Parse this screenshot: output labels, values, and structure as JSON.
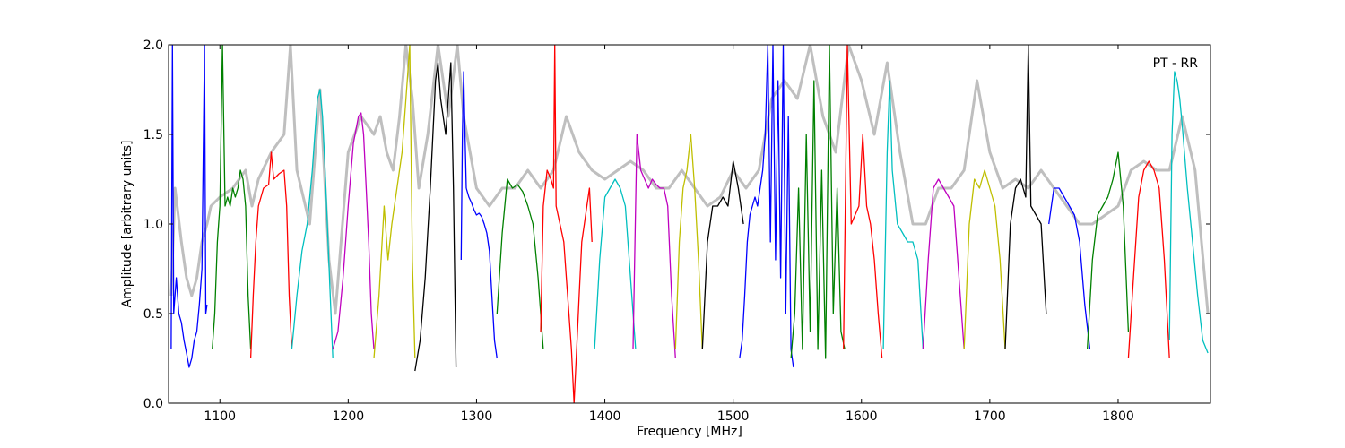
{
  "chart_data": {
    "type": "line",
    "title": "",
    "annotation": "PT - RR",
    "xlabel": "Frequency [MHz]",
    "ylabel": "Amplitude [arbitrary units]",
    "xlim": [
      1060,
      1872
    ],
    "ylim": [
      0.0,
      2.0
    ],
    "xticks": [
      1100,
      1200,
      1300,
      1400,
      1500,
      1600,
      1700,
      1800
    ],
    "yticks": [
      0.0,
      0.5,
      1.0,
      1.5,
      2.0
    ],
    "xtick_labels": [
      "1100",
      "1200",
      "1300",
      "1400",
      "1500",
      "1600",
      "1700",
      "1800"
    ],
    "ytick_labels": [
      "0.0",
      "0.5",
      "1.0",
      "1.5",
      "2.0"
    ],
    "grid": false,
    "background_series": {
      "color": "#bfbfbf",
      "x": [
        1062,
        1065,
        1070,
        1074,
        1078,
        1082,
        1086,
        1090,
        1093,
        1100,
        1110,
        1120,
        1125,
        1130,
        1140,
        1150,
        1155,
        1160,
        1170,
        1178,
        1185,
        1190,
        1200,
        1210,
        1220,
        1225,
        1230,
        1235,
        1240,
        1245,
        1250,
        1255,
        1262,
        1270,
        1278,
        1285,
        1290,
        1300,
        1310,
        1320,
        1330,
        1340,
        1350,
        1360,
        1370,
        1380,
        1390,
        1400,
        1410,
        1420,
        1430,
        1440,
        1450,
        1460,
        1470,
        1480,
        1490,
        1500,
        1510,
        1520,
        1530,
        1540,
        1550,
        1560,
        1570,
        1580,
        1590,
        1600,
        1610,
        1620,
        1630,
        1640,
        1650,
        1660,
        1670,
        1680,
        1690,
        1700,
        1710,
        1720,
        1730,
        1740,
        1750,
        1760,
        1770,
        1780,
        1790,
        1800,
        1810,
        1820,
        1830,
        1840,
        1850,
        1860,
        1870
      ],
      "y": [
        0.6,
        1.2,
        0.9,
        0.7,
        0.6,
        0.7,
        0.9,
        1.0,
        1.1,
        1.15,
        1.2,
        1.3,
        1.1,
        1.25,
        1.4,
        1.5,
        2.0,
        1.3,
        1.0,
        1.75,
        0.8,
        0.5,
        1.4,
        1.6,
        1.5,
        1.6,
        1.4,
        1.3,
        1.6,
        2.0,
        1.7,
        1.2,
        1.5,
        2.0,
        1.6,
        2.0,
        1.6,
        1.2,
        1.1,
        1.2,
        1.2,
        1.3,
        1.2,
        1.3,
        1.6,
        1.4,
        1.3,
        1.25,
        1.3,
        1.35,
        1.3,
        1.2,
        1.2,
        1.3,
        1.2,
        1.1,
        1.15,
        1.3,
        1.2,
        1.3,
        1.7,
        1.8,
        1.7,
        2.0,
        1.6,
        1.4,
        2.0,
        1.8,
        1.5,
        1.9,
        1.4,
        1.0,
        1.0,
        1.2,
        1.2,
        1.3,
        1.8,
        1.4,
        1.2,
        1.25,
        1.2,
        1.3,
        1.2,
        1.1,
        1.0,
        1.0,
        1.05,
        1.1,
        1.3,
        1.35,
        1.3,
        1.3,
        1.6,
        1.3,
        0.5
      ]
    },
    "series": [
      {
        "color": "#0000ff",
        "segments": [
          {
            "x": [
              1062,
              1063,
              1064,
              1066,
              1068,
              1070,
              1072,
              1074,
              1076,
              1078,
              1080,
              1082,
              1084,
              1086,
              1088,
              1089,
              1090
            ],
            "y": [
              0.3,
              2.0,
              0.5,
              0.7,
              0.5,
              0.45,
              0.35,
              0.28,
              0.2,
              0.25,
              0.35,
              0.4,
              0.55,
              0.75,
              2.0,
              0.5,
              0.55
            ]
          },
          {
            "x": [
              1292,
              1294,
              1296,
              1298,
              1300,
              1302,
              1304,
              1306,
              1308,
              1310,
              1312,
              1314,
              1316
            ],
            "y": [
              1.2,
              1.15,
              1.12,
              1.08,
              1.05,
              1.06,
              1.04,
              1.0,
              0.95,
              0.85,
              0.6,
              0.35,
              0.25
            ]
          },
          {
            "x": [
              1288,
              1289,
              1290,
              1291,
              1292
            ],
            "y": [
              0.8,
              1.5,
              1.85,
              1.5,
              1.2
            ]
          },
          {
            "x": [
              1505,
              1507,
              1509,
              1511,
              1513,
              1515,
              1517,
              1519,
              1521,
              1523,
              1525,
              1527,
              1529,
              1531,
              1533,
              1535,
              1537,
              1539,
              1541,
              1543,
              1545,
              1547
            ],
            "y": [
              0.25,
              0.35,
              0.6,
              0.9,
              1.05,
              1.1,
              1.15,
              1.1,
              1.2,
              1.3,
              1.5,
              2.0,
              0.9,
              2.0,
              0.8,
              1.8,
              0.7,
              2.0,
              0.5,
              1.6,
              0.3,
              0.2
            ]
          },
          {
            "x": [
              1746,
              1750,
              1754,
              1758,
              1762,
              1766,
              1770,
              1774,
              1778
            ],
            "y": [
              1.0,
              1.2,
              1.2,
              1.15,
              1.1,
              1.05,
              0.9,
              0.55,
              0.3
            ]
          }
        ]
      },
      {
        "color": "#008000",
        "segments": [
          {
            "x": [
              1094,
              1096,
              1098,
              1100,
              1102,
              1104,
              1106,
              1108,
              1110,
              1112,
              1114,
              1116,
              1118,
              1120,
              1122,
              1124
            ],
            "y": [
              0.3,
              0.5,
              0.9,
              1.1,
              2.0,
              1.1,
              1.15,
              1.1,
              1.2,
              1.15,
              1.2,
              1.3,
              1.25,
              1.1,
              0.6,
              0.3
            ]
          },
          {
            "x": [
              1316,
              1320,
              1324,
              1328,
              1332,
              1336,
              1340,
              1344,
              1348,
              1352
            ],
            "y": [
              0.5,
              0.95,
              1.25,
              1.2,
              1.22,
              1.18,
              1.1,
              1.0,
              0.7,
              0.3
            ]
          },
          {
            "x": [
              1545,
              1548,
              1551,
              1554,
              1557,
              1560,
              1563,
              1566,
              1569,
              1572,
              1575,
              1578,
              1581,
              1584,
              1587
            ],
            "y": [
              0.25,
              0.5,
              1.2,
              0.3,
              1.5,
              0.4,
              1.8,
              0.3,
              1.3,
              0.25,
              2.0,
              0.5,
              1.2,
              0.4,
              0.3
            ]
          },
          {
            "x": [
              1776,
              1780,
              1784,
              1788,
              1792,
              1796,
              1800,
              1804,
              1808
            ],
            "y": [
              0.3,
              0.8,
              1.05,
              1.1,
              1.15,
              1.25,
              1.4,
              1.1,
              0.4
            ]
          }
        ]
      },
      {
        "color": "#ff0000",
        "segments": [
          {
            "x": [
              1124,
              1126,
              1128,
              1130,
              1134,
              1138,
              1140,
              1142,
              1146,
              1150,
              1152,
              1154,
              1156
            ],
            "y": [
              0.25,
              0.6,
              0.9,
              1.1,
              1.2,
              1.22,
              1.4,
              1.25,
              1.28,
              1.3,
              1.1,
              0.6,
              0.3
            ]
          },
          {
            "x": [
              1350,
              1352,
              1355,
              1358,
              1360,
              1361,
              1362,
              1365,
              1368,
              1370,
              1372,
              1374,
              1376,
              1378,
              1380,
              1382,
              1384,
              1386,
              1388,
              1390
            ],
            "y": [
              0.4,
              1.1,
              1.3,
              1.25,
              1.2,
              2.0,
              1.1,
              1.0,
              0.9,
              0.7,
              0.5,
              0.3,
              0.0,
              0.3,
              0.6,
              0.9,
              1.0,
              1.1,
              1.2,
              0.9
            ]
          },
          {
            "x": [
              1586,
              1589,
              1592,
              1595,
              1598,
              1601,
              1604,
              1607,
              1610,
              1613,
              1616
            ],
            "y": [
              0.3,
              2.0,
              1.0,
              1.05,
              1.1,
              1.5,
              1.1,
              1.0,
              0.8,
              0.5,
              0.25
            ]
          },
          {
            "x": [
              1808,
              1812,
              1816,
              1820,
              1824,
              1828,
              1832,
              1836,
              1840
            ],
            "y": [
              0.25,
              0.7,
              1.15,
              1.3,
              1.35,
              1.3,
              1.2,
              0.8,
              0.25
            ]
          }
        ]
      },
      {
        "color": "#00bfbf",
        "segments": [
          {
            "x": [
              1156,
              1160,
              1164,
              1168,
              1172,
              1176,
              1178,
              1180,
              1182,
              1186,
              1188
            ],
            "y": [
              0.3,
              0.6,
              0.85,
              1.0,
              1.3,
              1.7,
              1.75,
              1.6,
              1.3,
              0.6,
              0.25
            ]
          },
          {
            "x": [
              1392,
              1396,
              1400,
              1404,
              1408,
              1412,
              1416,
              1420,
              1424
            ],
            "y": [
              0.3,
              0.8,
              1.15,
              1.2,
              1.25,
              1.2,
              1.1,
              0.7,
              0.3
            ]
          },
          {
            "x": [
              1617,
              1620,
              1622,
              1624,
              1628,
              1632,
              1636,
              1640,
              1644,
              1648
            ],
            "y": [
              0.3,
              1.4,
              1.8,
              1.3,
              1.0,
              0.95,
              0.9,
              0.9,
              0.8,
              0.3
            ]
          },
          {
            "x": [
              1840,
              1842,
              1844,
              1846,
              1848,
              1850,
              1854,
              1858,
              1862,
              1866,
              1870
            ],
            "y": [
              0.35,
              1.5,
              1.85,
              1.8,
              1.7,
              1.55,
              1.2,
              0.9,
              0.6,
              0.35,
              0.28
            ]
          }
        ]
      },
      {
        "color": "#bf00bf",
        "segments": [
          {
            "x": [
              1188,
              1192,
              1196,
              1200,
              1204,
              1208,
              1210,
              1212,
              1214,
              1216,
              1218,
              1220
            ],
            "y": [
              0.3,
              0.4,
              0.7,
              1.1,
              1.45,
              1.6,
              1.62,
              1.5,
              1.2,
              0.9,
              0.5,
              0.3
            ]
          },
          {
            "x": [
              1422,
              1425,
              1428,
              1431,
              1434,
              1437,
              1440,
              1443,
              1446,
              1449,
              1452,
              1455
            ],
            "y": [
              0.3,
              1.5,
              1.3,
              1.25,
              1.2,
              1.25,
              1.22,
              1.2,
              1.2,
              1.1,
              0.6,
              0.25
            ]
          },
          {
            "x": [
              1648,
              1652,
              1656,
              1660,
              1664,
              1668,
              1672,
              1676,
              1680
            ],
            "y": [
              0.3,
              0.8,
              1.2,
              1.25,
              1.2,
              1.15,
              1.1,
              0.7,
              0.3
            ]
          }
        ]
      },
      {
        "color": "#bfbf00",
        "segments": [
          {
            "x": [
              1220,
              1224,
              1228,
              1231,
              1234,
              1238,
              1242,
              1246,
              1248,
              1250,
              1252
            ],
            "y": [
              0.25,
              0.6,
              1.1,
              0.8,
              1.0,
              1.2,
              1.4,
              1.8,
              2.0,
              0.8,
              0.25
            ]
          },
          {
            "x": [
              1455,
              1458,
              1461,
              1464,
              1467,
              1470,
              1473,
              1476
            ],
            "y": [
              0.3,
              0.9,
              1.2,
              1.3,
              1.5,
              1.2,
              0.8,
              0.3
            ]
          },
          {
            "x": [
              1680,
              1684,
              1688,
              1692,
              1696,
              1700,
              1704,
              1708,
              1712
            ],
            "y": [
              0.3,
              1.0,
              1.25,
              1.2,
              1.3,
              1.2,
              1.1,
              0.8,
              0.3
            ]
          }
        ]
      },
      {
        "color": "#000000",
        "segments": [
          {
            "x": [
              1252,
              1256,
              1260,
              1264,
              1268,
              1270,
              1272,
              1276,
              1280,
              1282,
              1284
            ],
            "y": [
              0.18,
              0.35,
              0.7,
              1.2,
              1.8,
              1.9,
              1.7,
              1.5,
              1.9,
              1.2,
              0.2
            ]
          },
          {
            "x": [
              1476,
              1480,
              1484,
              1488,
              1492,
              1496,
              1500,
              1504,
              1508
            ],
            "y": [
              0.3,
              0.9,
              1.1,
              1.1,
              1.15,
              1.1,
              1.35,
              1.2,
              1.0
            ]
          },
          {
            "x": [
              1712,
              1716,
              1720,
              1724,
              1728,
              1730,
              1732,
              1736,
              1740,
              1744
            ],
            "y": [
              0.3,
              1.0,
              1.2,
              1.25,
              1.15,
              2.0,
              1.1,
              1.05,
              1.0,
              0.5
            ]
          }
        ]
      }
    ]
  }
}
